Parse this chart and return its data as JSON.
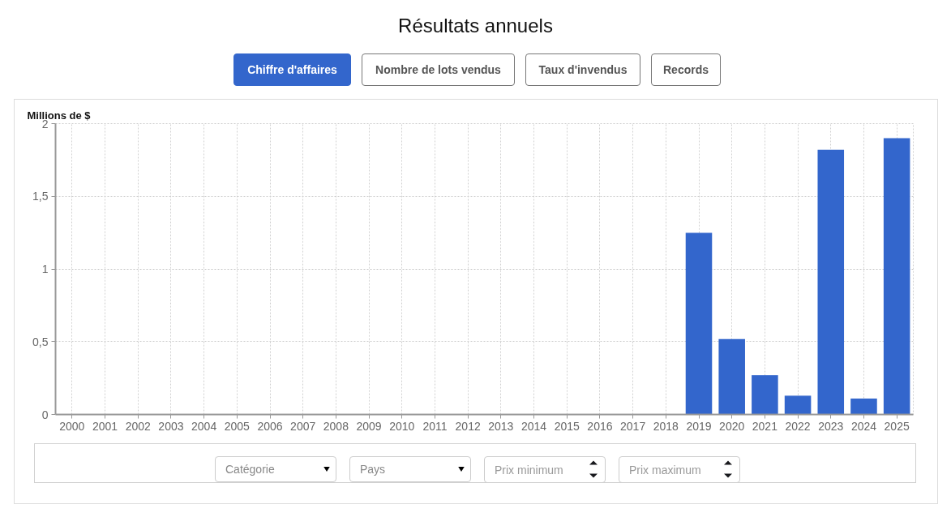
{
  "chart_data": {
    "type": "bar",
    "title": "Résultats annuels",
    "ylabel": "Millions de $",
    "categories": [
      "2000",
      "2001",
      "2002",
      "2003",
      "2004",
      "2005",
      "2006",
      "2007",
      "2008",
      "2009",
      "2010",
      "2011",
      "2012",
      "2013",
      "2014",
      "2015",
      "2016",
      "2017",
      "2018",
      "2019",
      "2020",
      "2021",
      "2022",
      "2023",
      "2024",
      "2025"
    ],
    "values": [
      null,
      null,
      null,
      null,
      null,
      null,
      null,
      null,
      null,
      null,
      null,
      null,
      null,
      null,
      null,
      null,
      null,
      null,
      null,
      1.25,
      0.52,
      0.27,
      0.13,
      1.82,
      0.11,
      1.9
    ],
    "color": "#3366cc",
    "ylim": [
      0,
      2
    ],
    "yticks": [
      0,
      {
        "value": 0.5,
        "label": "0,5"
      },
      1,
      {
        "value": 1.5,
        "label": "1,5"
      },
      2
    ],
    "grid": true,
    "annotations": [
      "Chiffre d'affaires",
      "Nombre de lots vendus",
      "Taux d'invendus",
      "Records",
      "Catégorie",
      "Pays",
      "Prix minimum",
      "Prix maximum"
    ]
  }
}
